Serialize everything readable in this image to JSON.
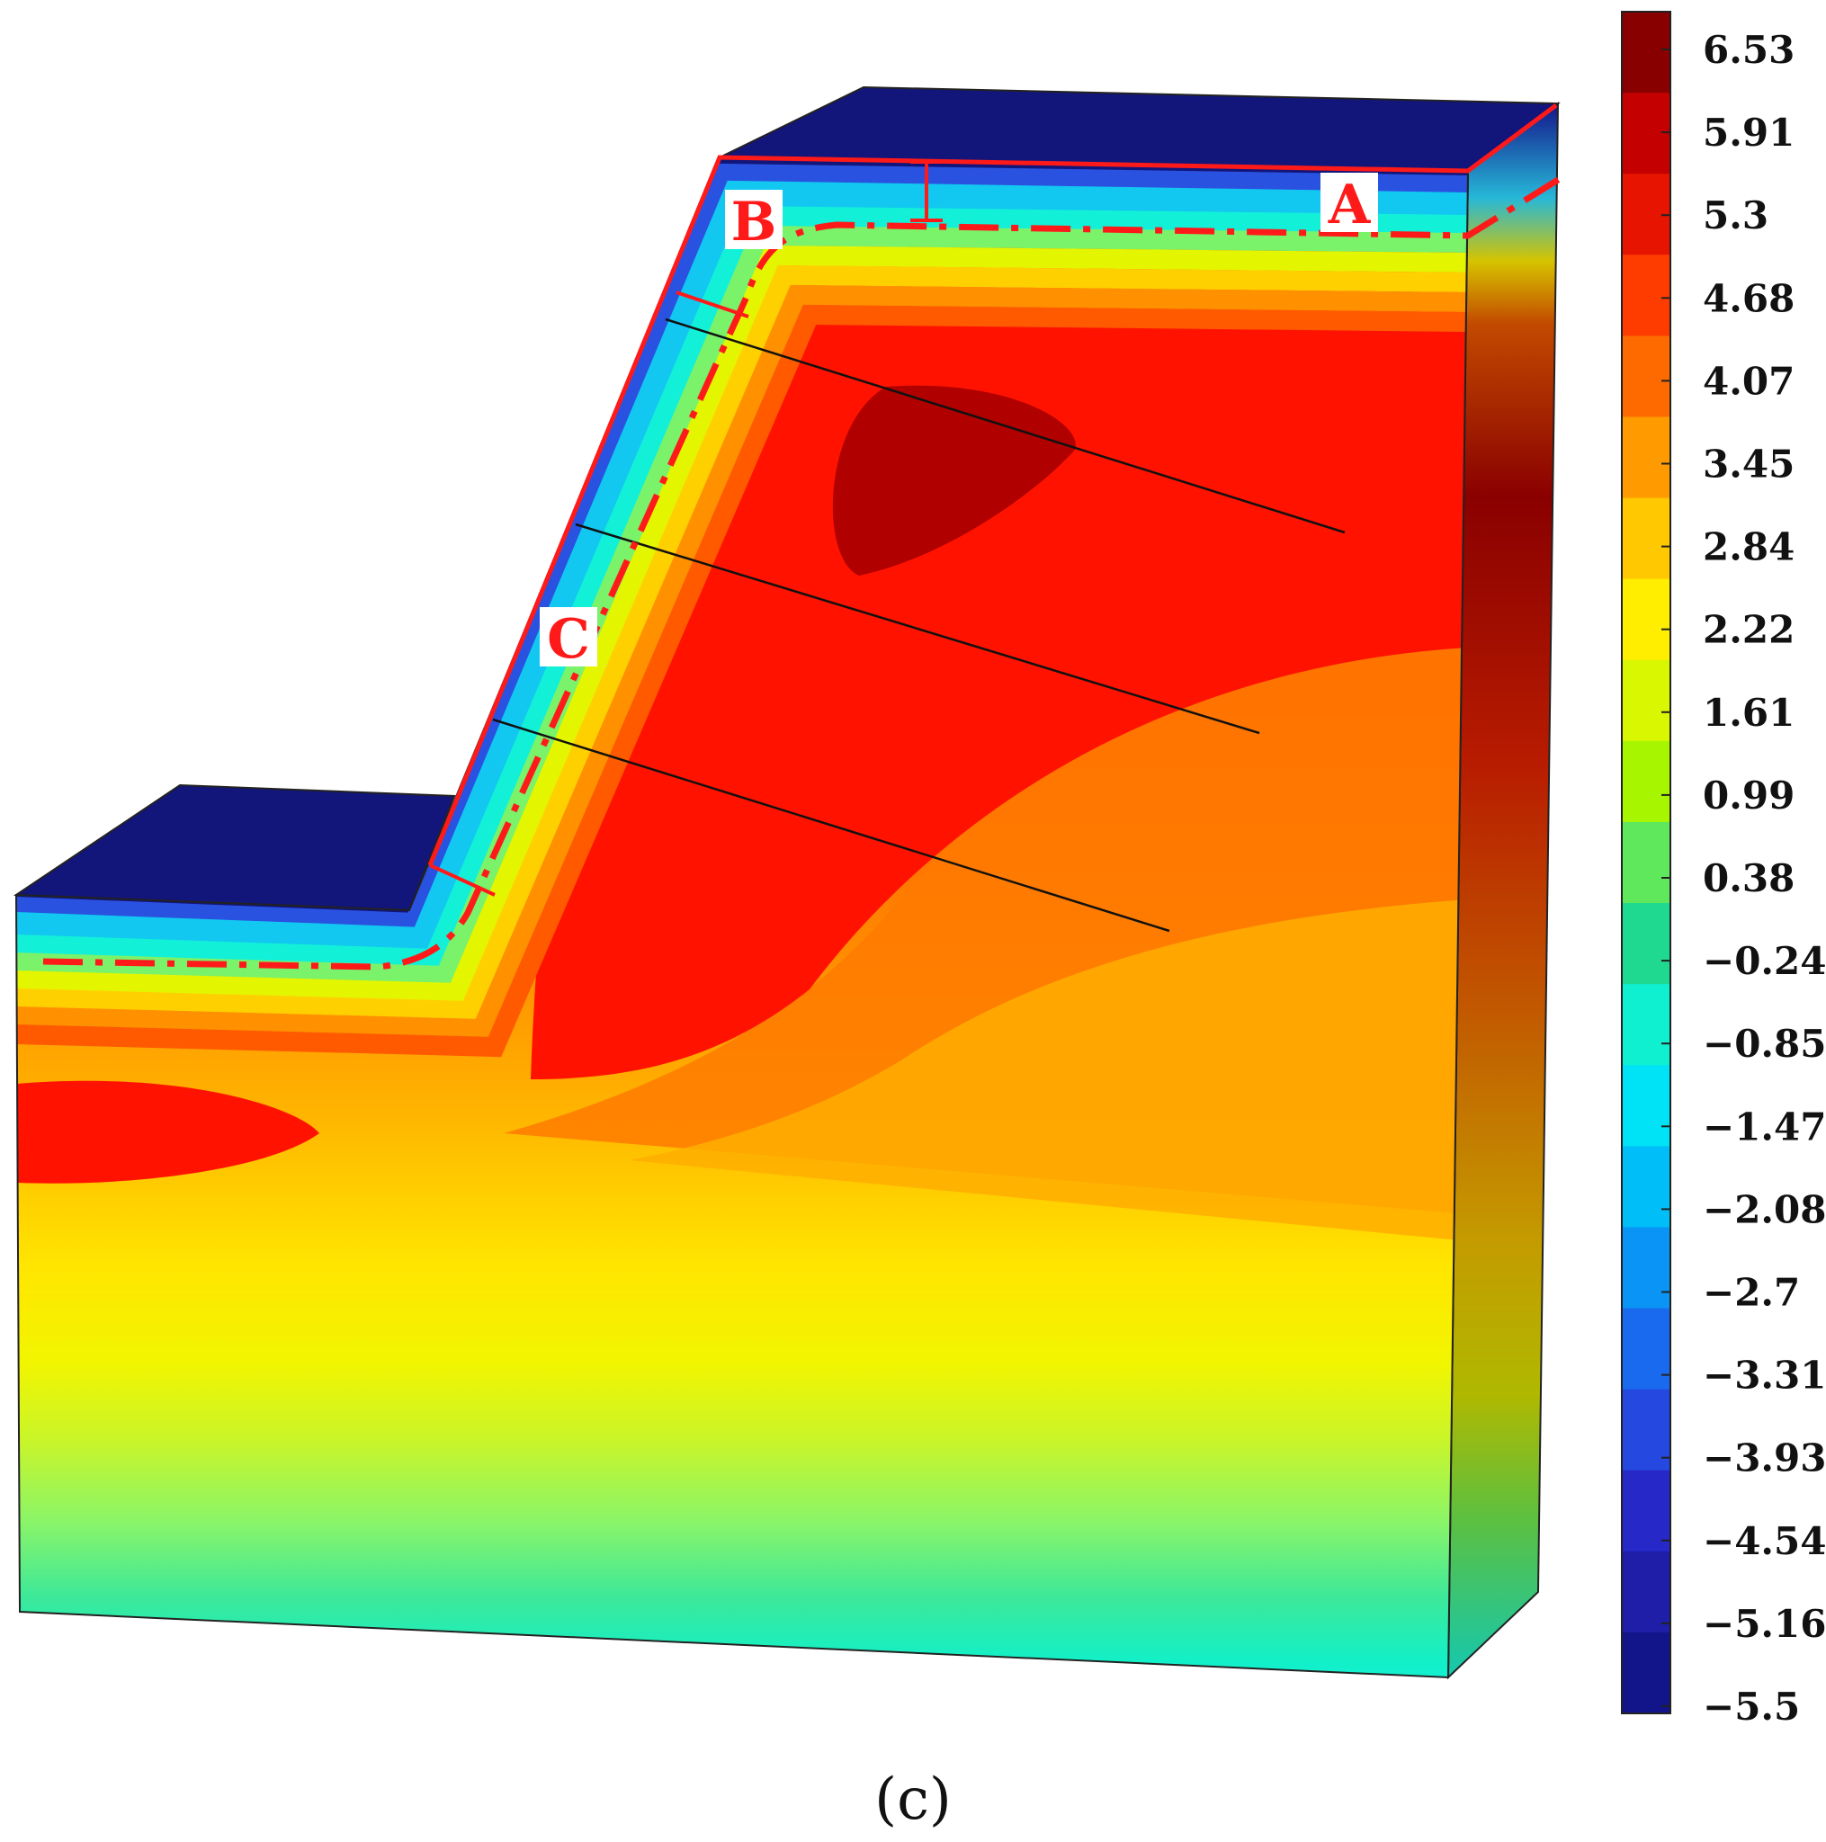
{
  "figure": {
    "caption": "(c)",
    "zone_labels": [
      "A",
      "B",
      "C"
    ]
  },
  "colorbar": {
    "ticks": [
      "6.53",
      "5.91",
      "5.3",
      "4.68",
      "4.07",
      "3.45",
      "2.84",
      "2.22",
      "1.61",
      "0.99",
      "0.38",
      "−0.24",
      "−0.85",
      "−1.47",
      "−2.08",
      "−2.7",
      "−3.31",
      "−3.93",
      "−4.54",
      "−5.16",
      "−5.5"
    ],
    "colors": [
      "#880000",
      "#c40000",
      "#e61400",
      "#ff3c00",
      "#ff6a00",
      "#ff9a00",
      "#ffc800",
      "#ffee00",
      "#d9f700",
      "#a8f500",
      "#5fe85c",
      "#1fd991",
      "#0ff0d0",
      "#00e2f5",
      "#00bff8",
      "#0a94f5",
      "#1a6af0",
      "#2448e0",
      "#2628c8",
      "#1e1ea8",
      "#12158a"
    ]
  }
}
